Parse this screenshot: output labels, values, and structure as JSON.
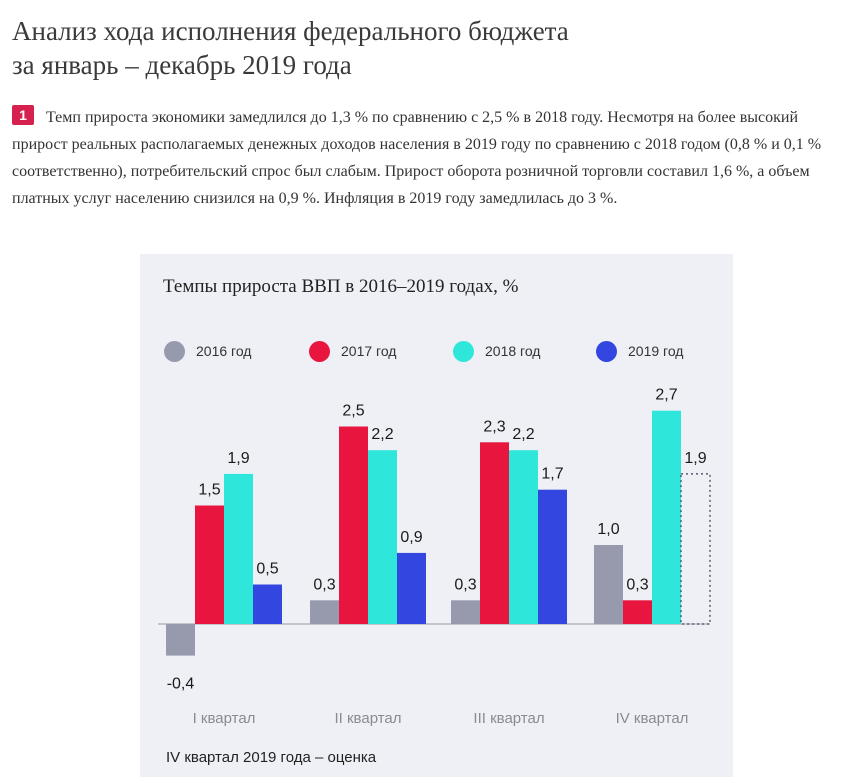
{
  "page": {
    "title_line1": "Анализ хода исполнения федерального бюджета",
    "title_line2": "за январь – декабрь 2019 года",
    "badge": "1",
    "intro_text": "Темп прироста экономики замедлился до 1,3 % по сравнению с 2,5 % в 2018 году. Несмотря на более высокий прирост реальных располагаемых денежных доходов населения в 2019 году по сравнению с 2018 годом (0,8 % и 0,1 % соответственно), потребительский спрос был слабым. Прирост оборота розничной торговли составил 1,6 %, а объем платных услуг населению снизился на 0,9 %. Инфляция в 2019 году замедлилась до 3 %."
  },
  "chart_data": {
    "type": "bar",
    "title": "Темпы прироста ВВП в 2016–2019 годах, %",
    "categories": [
      "I квартал",
      "II квартал",
      "III квартал",
      "IV квартал"
    ],
    "series": [
      {
        "name": "2016 год",
        "color": "#9799ad",
        "values": [
          -0.4,
          0.3,
          0.3,
          1.0
        ],
        "labels": [
          "-0,4",
          "0,3",
          "0,3",
          "1,0"
        ]
      },
      {
        "name": "2017 год",
        "color": "#e8163f",
        "values": [
          1.5,
          2.5,
          2.3,
          0.3
        ],
        "labels": [
          "1,5",
          "2,5",
          "2,3",
          "0,3"
        ]
      },
      {
        "name": "2018 год",
        "color": "#2ee6d9",
        "values": [
          1.9,
          2.2,
          2.2,
          2.7
        ],
        "labels": [
          "1,9",
          "2,2",
          "2,2",
          "2,7"
        ]
      },
      {
        "name": "2019 год",
        "color": "#3446e0",
        "values": [
          0.5,
          0.9,
          1.7,
          1.9
        ],
        "labels": [
          "0,5",
          "0,9",
          "1,7",
          "1,9"
        ],
        "estimate_last": true
      }
    ],
    "ylim": [
      -0.4,
      2.7
    ],
    "xlabel": "",
    "ylabel": "",
    "grid": false,
    "legend_position": "top",
    "note": "IV квартал 2019 года – оценка"
  }
}
